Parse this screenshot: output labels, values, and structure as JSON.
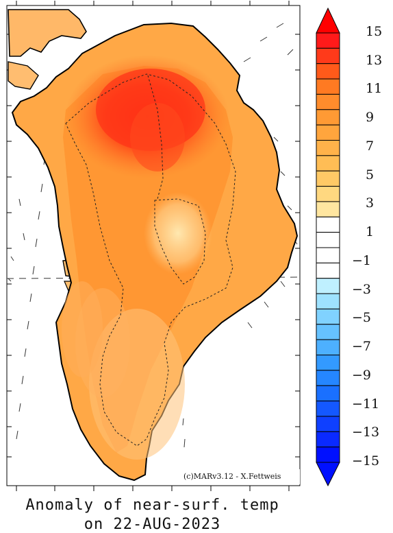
{
  "map": {
    "caption_line1": "Anomaly of near-surf. temp",
    "caption_line2": "on 22-AUG-2023",
    "credit": "(c)MARv3.12 - X.Fettweis"
  },
  "colorbar": {
    "labels": [
      "15",
      "13",
      "11",
      "9",
      "7",
      "5",
      "3",
      "1",
      "−1",
      "−3",
      "−5",
      "−7",
      "−9",
      "−11",
      "−13",
      "−15"
    ],
    "colors_top_to_bottom": [
      "#ff1a1a",
      "#ff3a1a",
      "#ff5a1a",
      "#ff7a22",
      "#ff8c2c",
      "#ff9a34",
      "#ffa53d",
      "#ffb24a",
      "#ffbd55",
      "#ffc966",
      "#ffd880",
      "#ffe6a0",
      "#ffffff",
      "#ffffff",
      "#ffffff",
      "#ffffff",
      "#bff0ff",
      "#9ee2ff",
      "#80d2ff",
      "#66c2ff",
      "#4db0ff",
      "#339aff",
      "#2586ff",
      "#1a70ff",
      "#1458ff",
      "#0f40ff",
      "#0a2aff",
      "#0010ff"
    ],
    "top_arrow_color": "#ff0000",
    "bottom_arrow_color": "#0010ff"
  },
  "colors": {
    "anomaly_very_high": "#ff2a10",
    "anomaly_high": "#ff6a1f",
    "anomaly_mid": "#ffa040",
    "anomaly_low": "#ffc070",
    "anomaly_lowest": "#ffe0a0",
    "outline": "#000000"
  }
}
